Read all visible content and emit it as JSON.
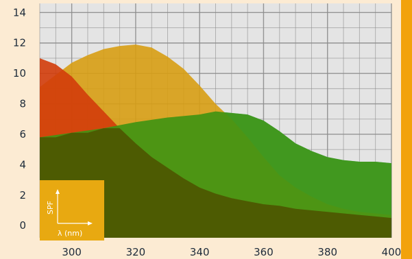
{
  "chart_data": {
    "type": "area",
    "xlabel": "",
    "ylabel": "",
    "xlim": [
      290,
      400
    ],
    "ylim": [
      -0.8,
      14.6
    ],
    "x_ticks": [
      300,
      320,
      340,
      360,
      380,
      400
    ],
    "y_ticks": [
      0,
      2,
      4,
      6,
      8,
      10,
      12,
      14
    ],
    "grid": true,
    "x_tick_labels": [
      "300",
      "320",
      "340",
      "360",
      "380",
      "400"
    ],
    "y_tick_labels": [
      "0",
      "2",
      "4",
      "6",
      "8",
      "10",
      "12",
      "14"
    ],
    "inset_legend": {
      "y_axis_label": "SPF",
      "x_axis_label": "λ (nm)"
    },
    "series": [
      {
        "color": "#4ec08a",
        "x": [
          290,
          300,
          310,
          320,
          330,
          340,
          345,
          350,
          355,
          360,
          365,
          370,
          375,
          380,
          385,
          390,
          395,
          400
        ],
        "y": [
          5.8,
          6.1,
          6.4,
          6.8,
          7.1,
          7.3,
          7.5,
          7.4,
          7.3,
          6.9,
          6.2,
          5.4,
          4.9,
          4.5,
          4.3,
          4.2,
          4.2,
          4.1
        ]
      },
      {
        "color": "#d79d13",
        "x": [
          290,
          295,
          300,
          305,
          310,
          315,
          320,
          325,
          330,
          335,
          340,
          345,
          350,
          355,
          360,
          365,
          370,
          375,
          380,
          385,
          390,
          395,
          400
        ],
        "y": [
          9.1,
          9.9,
          10.7,
          11.2,
          11.6,
          11.8,
          11.9,
          11.7,
          11.1,
          10.3,
          9.2,
          8.0,
          7.0,
          5.8,
          4.5,
          3.3,
          2.5,
          1.9,
          1.4,
          1.1,
          0.9,
          0.8,
          0.7
        ]
      },
      {
        "color": "#d13c0a",
        "x": [
          290,
          295,
          300,
          305,
          310,
          315,
          320,
          325,
          330,
          335,
          340,
          345,
          350,
          355,
          360,
          365,
          370,
          375,
          380,
          385,
          390,
          395,
          400
        ],
        "y": [
          11.0,
          10.6,
          9.8,
          8.6,
          7.5,
          6.4,
          5.4,
          4.5,
          3.8,
          3.1,
          2.5,
          2.1,
          1.8,
          1.6,
          1.4,
          1.3,
          1.1,
          1.0,
          0.9,
          0.8,
          0.7,
          0.6,
          0.5
        ]
      },
      {
        "color": "#3f9413",
        "x": [
          290,
          300,
          310,
          320,
          330,
          340,
          345,
          350,
          355,
          360,
          365,
          370,
          375,
          380,
          385,
          390,
          395,
          400
        ],
        "y": [
          5.8,
          6.1,
          6.4,
          6.8,
          7.1,
          7.3,
          7.5,
          7.4,
          7.3,
          6.9,
          6.2,
          5.4,
          4.9,
          4.5,
          4.3,
          4.2,
          4.2,
          4.1
        ]
      }
    ],
    "colors": {
      "plot_background": "#e4e4e4",
      "grid": "#8c8c8c",
      "page_background": "#fcebd3",
      "overlap_dark": "#4d5b02",
      "inset_background": "#e8a911",
      "right_strip": "#f2a20c"
    }
  }
}
